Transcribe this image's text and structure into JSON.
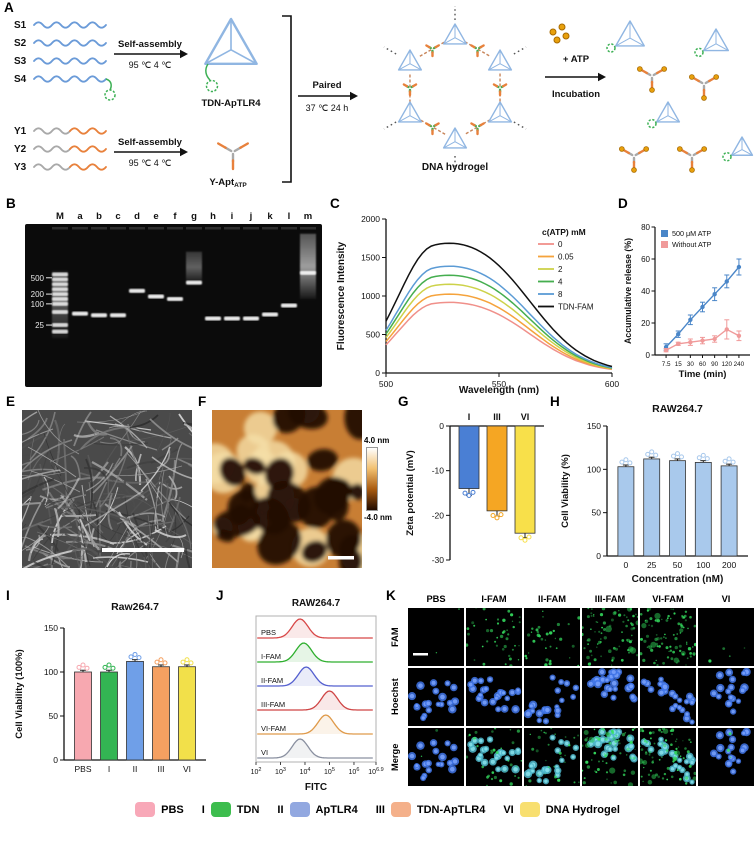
{
  "panels": {
    "A": {
      "label": "A",
      "top_strands": [
        "S1",
        "S2",
        "S3",
        "S4"
      ],
      "bottom_strands": [
        "Y1",
        "Y2",
        "Y3"
      ],
      "self_assembly": "Self-assembly",
      "temp": "95 ℃ 4 ℃",
      "tdn_product": "TDN-ApTLR4",
      "y_product": "Y-Apt",
      "y_product_sub": "ATP",
      "paired": "Paired",
      "paired_cond": "37 ℃ 24 h",
      "hydrogel": "DNA hydrogel",
      "atp": "+ ATP",
      "incubation": "Incubation"
    },
    "B": {
      "label": "B",
      "lanes": [
        "M",
        "a",
        "b",
        "c",
        "d",
        "e",
        "f",
        "g",
        "h",
        "i",
        "j",
        "k",
        "l",
        "m"
      ],
      "markers": [
        {
          "label": "500",
          "f": 0.33
        },
        {
          "label": "200",
          "f": 0.43
        },
        {
          "label": "100",
          "f": 0.49
        },
        {
          "label": "25",
          "f": 0.62
        }
      ],
      "bands": {
        "M": [
          0.31,
          0.34,
          0.37,
          0.4,
          0.43,
          0.46,
          0.49,
          0.54,
          0.62,
          0.66
        ],
        "a": [
          0.55
        ],
        "b": [
          0.56
        ],
        "c": [
          0.56
        ],
        "d": [
          0.41
        ],
        "e": [
          0.445
        ],
        "f": [
          0.46
        ],
        "g": [
          0.36
        ],
        "h": [
          0.58
        ],
        "i": [
          0.58
        ],
        "j": [
          0.58
        ],
        "k": [
          0.555
        ],
        "l": [
          0.5
        ],
        "m": [
          0.3
        ]
      },
      "smears": {
        "M": [
          0.29,
          0.7,
          0.3
        ],
        "g": [
          0.17,
          0.36,
          0.35
        ],
        "m": [
          0.06,
          0.46,
          0.6
        ]
      }
    },
    "E": {
      "label": "E"
    },
    "F": {
      "label": "F",
      "scale_max": "4.0 nm",
      "scale_min": "-4.0 nm"
    },
    "K": {
      "label": "K",
      "columns": [
        "PBS",
        "I-FAM",
        "II-FAM",
        "III-FAM",
        "VI-FAM",
        "VI"
      ],
      "rows": [
        "FAM",
        "Hoechst",
        "Merge"
      ],
      "fam_density": [
        2,
        42,
        36,
        70,
        80,
        4
      ]
    }
  },
  "chart_data": [
    {
      "id": "C",
      "panel_label": "C",
      "type": "line",
      "xlabel": "Wavelength (nm)",
      "ylabel": "Fluorescence Intensity",
      "xlim": [
        500,
        600
      ],
      "ylim": [
        0,
        2000
      ],
      "xticks": [
        500,
        550,
        600
      ],
      "yticks": [
        0,
        500,
        1000,
        1500,
        2000
      ],
      "legend_title": "c(ATP) mM",
      "peak_nm": 521,
      "series": [
        {
          "name": "0",
          "color": "#f0908a",
          "peak": 860
        },
        {
          "name": "0.05",
          "color": "#f5a33c",
          "peak": 960
        },
        {
          "name": "2",
          "color": "#cdd24a",
          "peak": 1080
        },
        {
          "name": "4",
          "color": "#45ae4f",
          "peak": 1190
        },
        {
          "name": "8",
          "color": "#5b9bd5",
          "peak": 1300
        },
        {
          "name": "TDN-FAM",
          "color": "#111111",
          "peak": 1580
        }
      ]
    },
    {
      "id": "D",
      "panel_label": "D",
      "type": "line",
      "xlabel": "Time (min)",
      "ylabel": "Accumulative release (%)",
      "categories": [
        "7.5",
        "15",
        "30",
        "60",
        "90",
        "120",
        "240"
      ],
      "ylim": [
        0,
        80
      ],
      "yticks": [
        0,
        20,
        40,
        60,
        80
      ],
      "series": [
        {
          "name": "500 μM ATP",
          "color": "#4a86c8",
          "values": [
            5,
            13,
            22,
            30,
            38,
            46,
            55
          ],
          "errors": [
            2,
            2,
            3,
            3,
            4,
            4,
            5
          ]
        },
        {
          "name": "Without ATP",
          "color": "#f09a9a",
          "values": [
            3,
            7,
            8,
            9,
            10,
            16,
            12
          ],
          "errors": [
            1,
            1,
            2,
            2,
            2,
            6,
            3
          ]
        }
      ]
    },
    {
      "id": "G",
      "panel_label": "G",
      "type": "bar",
      "ylabel": "Zeta potential (mV)",
      "categories": [
        "I",
        "III",
        "VI"
      ],
      "values": [
        -14,
        -19,
        -24
      ],
      "errors": [
        1.5,
        1.2,
        1.0
      ],
      "colors": [
        "#4a7fd4",
        "#f5a623",
        "#f8e04a"
      ],
      "ylim": [
        -30,
        0
      ],
      "yticks": [
        0,
        -10,
        -20,
        -30
      ]
    },
    {
      "id": "H",
      "panel_label": "H",
      "type": "bar",
      "title": "RAW264.7",
      "xlabel": "Concentration (nM)",
      "ylabel": "Cell Viability (%)",
      "categories": [
        "0",
        "25",
        "50",
        "100",
        "200"
      ],
      "values": [
        103,
        112,
        110,
        108,
        104
      ],
      "errors": [
        2,
        2,
        2,
        2,
        2
      ],
      "colors": [
        "#a9c9ec",
        "#a9c9ec",
        "#a9c9ec",
        "#a9c9ec",
        "#a9c9ec"
      ],
      "ylim": [
        0,
        150
      ],
      "yticks": [
        0,
        50,
        100,
        150
      ]
    },
    {
      "id": "I",
      "panel_label": "I",
      "type": "bar",
      "title": "Raw264.7",
      "ylabel": "Cell Viability (100%)",
      "categories": [
        "PBS",
        "I",
        "II",
        "III",
        "VI"
      ],
      "values": [
        100,
        100,
        112,
        106,
        106
      ],
      "errors": [
        2,
        2,
        2,
        2,
        2
      ],
      "colors": [
        "#f7a8b0",
        "#33b553",
        "#6f9fe8",
        "#f5a061",
        "#f2e04a"
      ],
      "ylim": [
        0,
        150
      ],
      "yticks": [
        0,
        50,
        100,
        150
      ]
    },
    {
      "id": "J",
      "panel_label": "J",
      "type": "ridgeline",
      "title": "RAW264.7",
      "xlabel": "FITC",
      "xlim_log": [
        2,
        6.9
      ],
      "xticks": [
        "10^2",
        "10^3",
        "10^4",
        "10^5",
        "10^6",
        "10^6.9"
      ],
      "series": [
        {
          "name": "PBS",
          "color": "#d84848",
          "peak_log": 3.8
        },
        {
          "name": "I-FAM",
          "color": "#2eaf2e",
          "peak_log": 3.95
        },
        {
          "name": "II-FAM",
          "color": "#5560cf",
          "peak_log": 4.05
        },
        {
          "name": "III-FAM",
          "color": "#cf4545",
          "peak_log": 5.0
        },
        {
          "name": "VI-FAM",
          "color": "#df9a4a",
          "peak_log": 4.85
        },
        {
          "name": "VI",
          "color": "#8a90a0",
          "peak_log": 3.8
        }
      ]
    }
  ],
  "legend": {
    "items": [
      {
        "prefix": "",
        "color": "#f8a8b8",
        "label": "PBS"
      },
      {
        "prefix": "I",
        "color": "#3dbd4e",
        "label": "TDN"
      },
      {
        "prefix": "II",
        "color": "#92a8e0",
        "label": "ApTLR4"
      },
      {
        "prefix": "III",
        "color": "#f4b08a",
        "label": "TDN-ApTLR4"
      },
      {
        "prefix": "VI",
        "color": "#f8df70",
        "label": "DNA Hydrogel"
      }
    ]
  }
}
